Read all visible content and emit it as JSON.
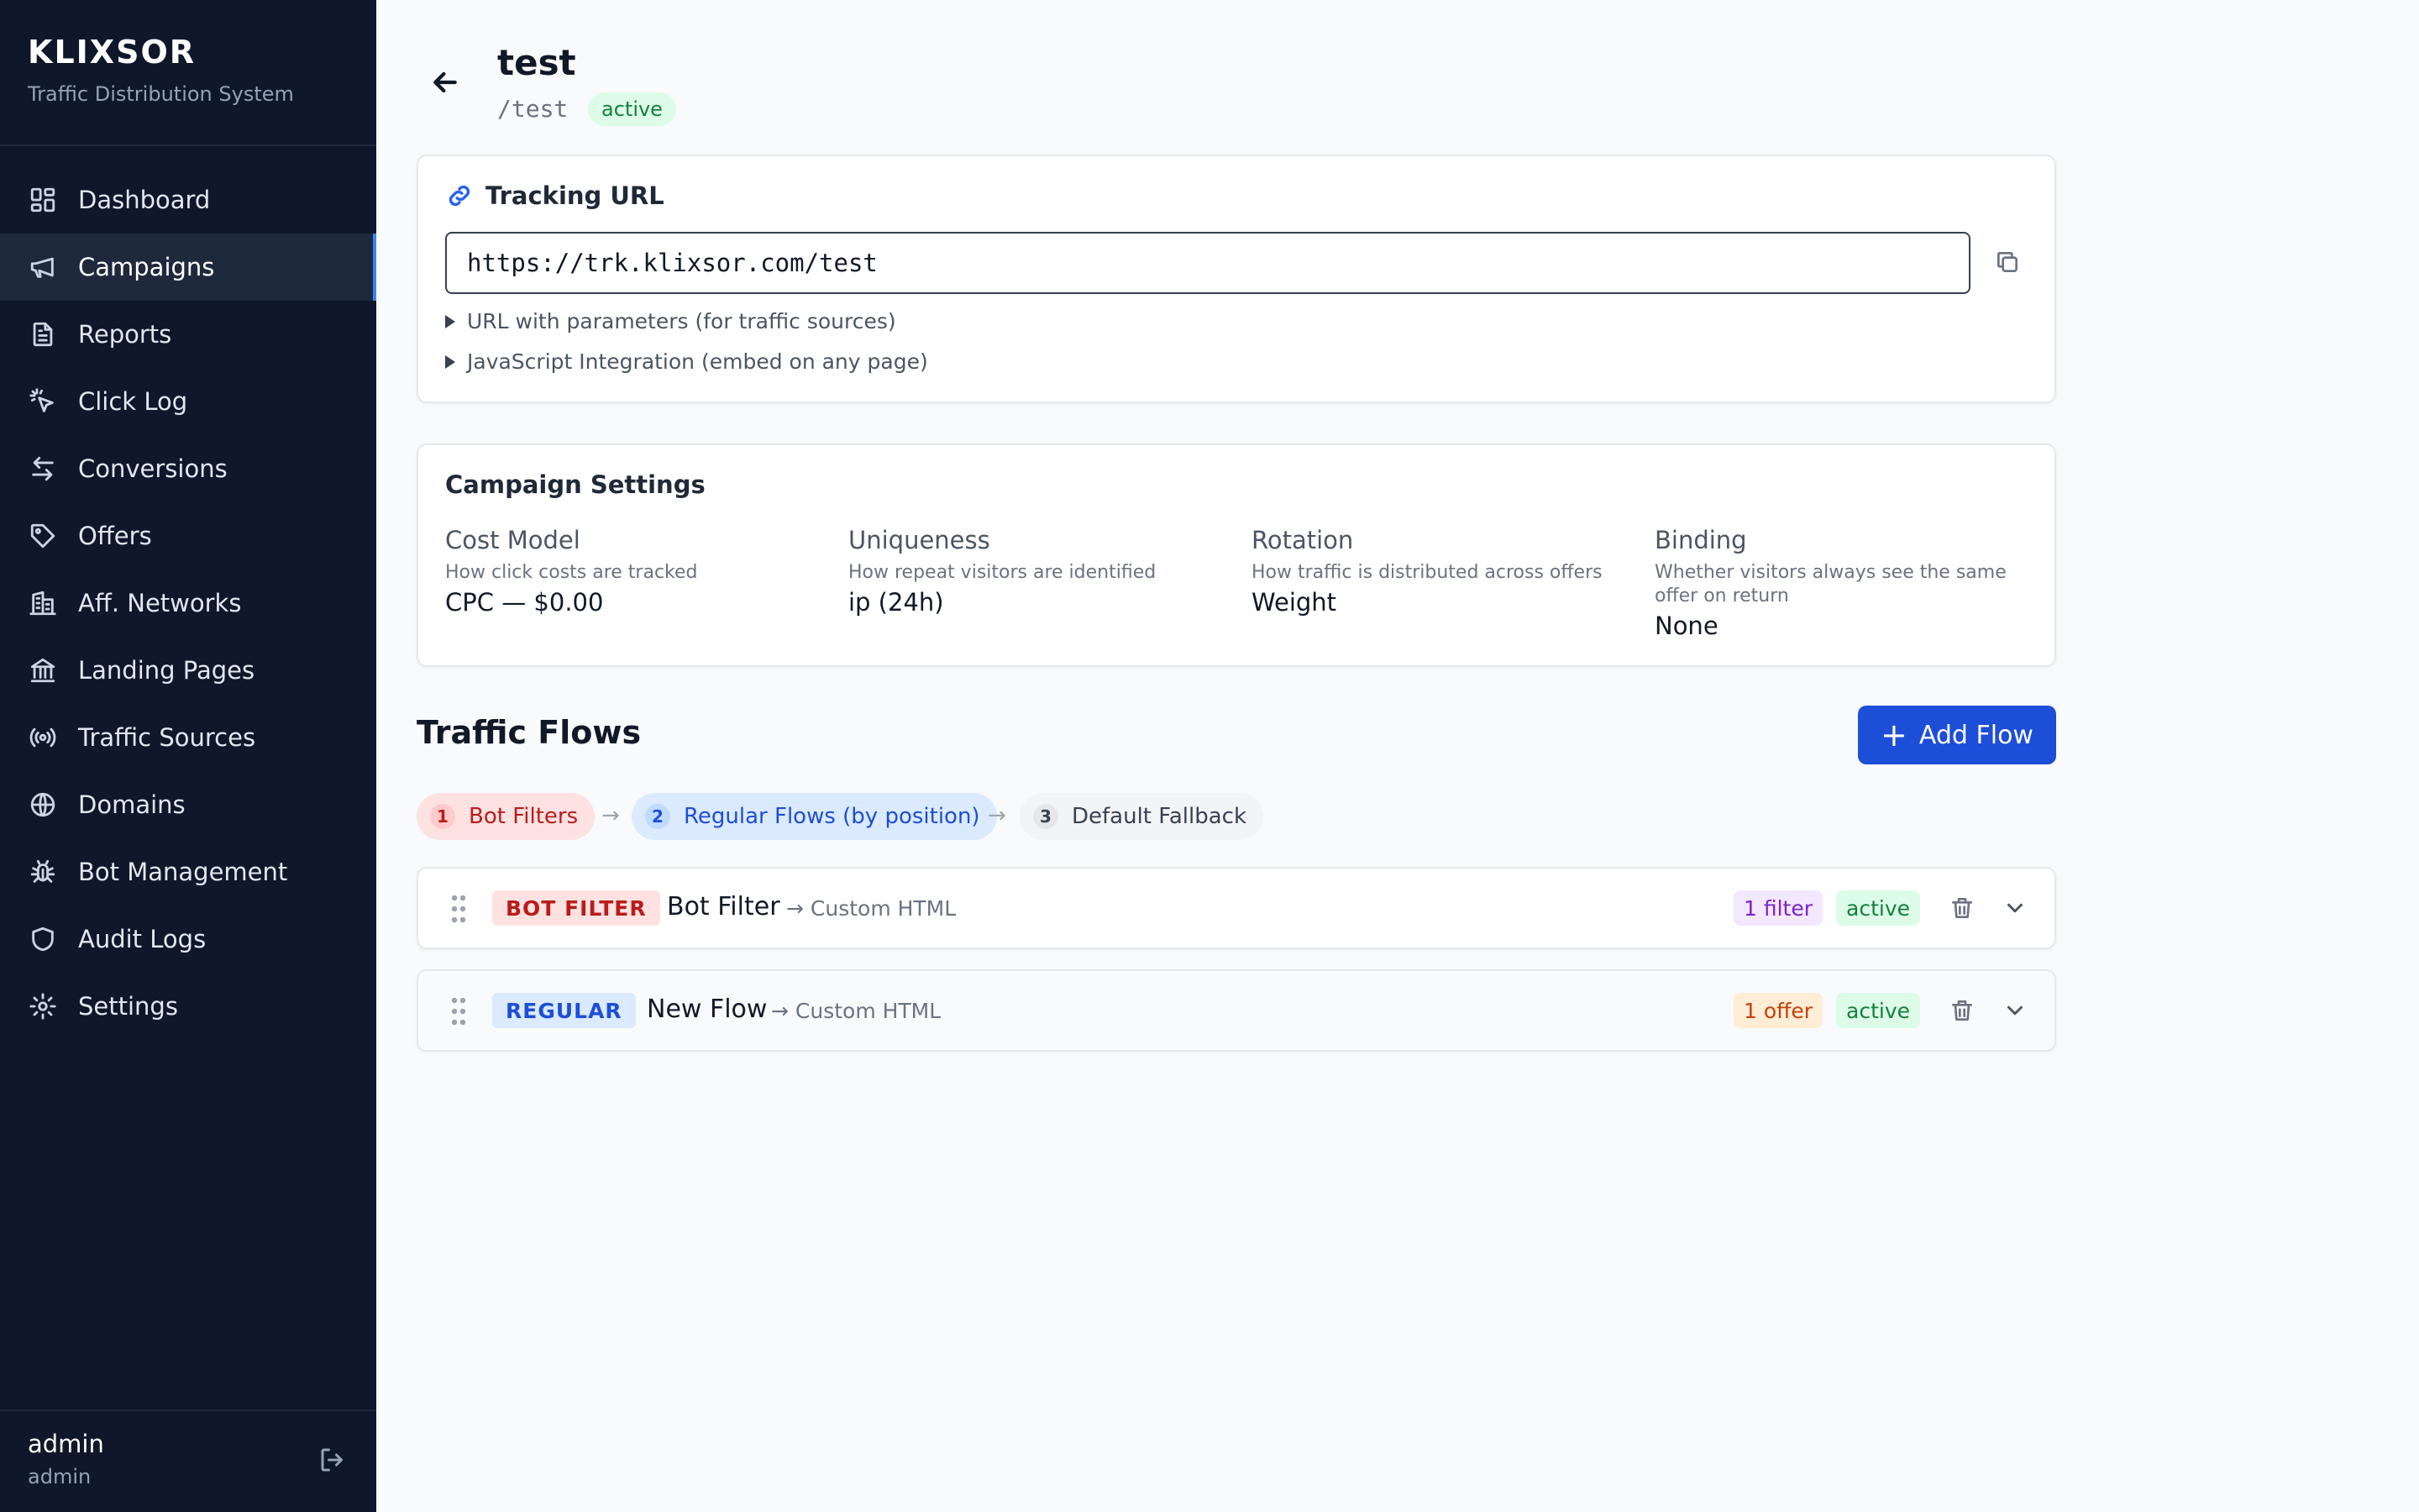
{
  "brand": {
    "name": "KLIXSOR",
    "subtitle": "Traffic Distribution System"
  },
  "sidebar": {
    "active_color": "#3b82f6",
    "items": [
      {
        "label": "Dashboard",
        "icon": "dashboard-icon"
      },
      {
        "label": "Campaigns",
        "icon": "megaphone-icon",
        "active": true
      },
      {
        "label": "Reports",
        "icon": "document-icon"
      },
      {
        "label": "Click Log",
        "icon": "cursor-click-icon"
      },
      {
        "label": "Conversions",
        "icon": "arrows-exchange-icon"
      },
      {
        "label": "Offers",
        "icon": "tag-icon"
      },
      {
        "label": "Aff. Networks",
        "icon": "building-icon"
      },
      {
        "label": "Landing Pages",
        "icon": "bank-icon"
      },
      {
        "label": "Traffic Sources",
        "icon": "broadcast-icon"
      },
      {
        "label": "Domains",
        "icon": "globe-icon"
      },
      {
        "label": "Bot Management",
        "icon": "bug-icon"
      },
      {
        "label": "Audit Logs",
        "icon": "shield-icon"
      },
      {
        "label": "Settings",
        "icon": "gear-icon"
      }
    ]
  },
  "user": {
    "name": "admin",
    "role": "admin"
  },
  "campaign": {
    "title": "test",
    "path": "/test",
    "status": "active"
  },
  "tracking": {
    "heading": "Tracking URL",
    "url": "https://trk.klixsor.com/test",
    "params_toggle": "URL with parameters (for traffic sources)",
    "js_toggle": "JavaScript Integration (embed on any page)"
  },
  "settings": {
    "heading": "Campaign Settings",
    "items": [
      {
        "label": "Cost Model",
        "desc": "How click costs are tracked",
        "value": "CPC — $0.00"
      },
      {
        "label": "Uniqueness",
        "desc": "How repeat visitors are identified",
        "value": "ip (24h)"
      },
      {
        "label": "Rotation",
        "desc": "How traffic is distributed across offers",
        "value": "Weight"
      },
      {
        "label": "Binding",
        "desc": "Whether visitors always see the same offer on return",
        "value": "None"
      }
    ]
  },
  "flows": {
    "heading": "Traffic Flows",
    "add_label": "Add Flow",
    "steps": [
      {
        "num": "1",
        "label": "Bot Filters"
      },
      {
        "num": "2",
        "label": "Regular Flows (by position)"
      },
      {
        "num": "3",
        "label": "Default Fallback"
      }
    ],
    "arrow": "→",
    "items": [
      {
        "type": "BOT FILTER",
        "name": "Bot Filter",
        "target": "→ Custom HTML",
        "count": "1 filter",
        "status": "active"
      },
      {
        "type": "REGULAR",
        "name": "New Flow",
        "target": "→ Custom HTML",
        "count": "1 offer",
        "status": "active"
      }
    ]
  }
}
